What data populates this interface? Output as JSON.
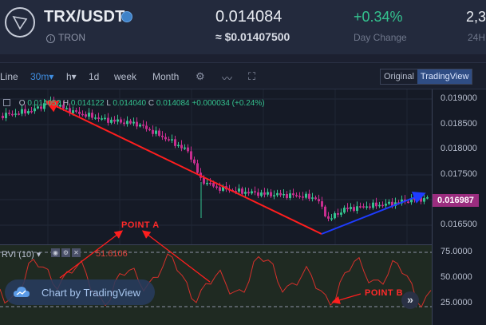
{
  "header": {
    "pair": "TRX/USDT",
    "coin": "TRON",
    "price": "0.014084",
    "usd_price": "≈ $0.01407500",
    "change": "+0.34%",
    "change_label": "Day Change",
    "high_value": "2,3",
    "high_label": "24H"
  },
  "toolbar": {
    "items": [
      {
        "label": "Line"
      },
      {
        "label": "30m▾"
      },
      {
        "label": "h▾"
      },
      {
        "label": "1d"
      },
      {
        "label": "week"
      },
      {
        "label": "Month"
      }
    ],
    "view_original": "Original",
    "view_tradingview": "TradingView"
  },
  "ohlc": {
    "o_label": "O",
    "o_value": "0.014052",
    "h_label": "H",
    "h_value": "0.014122",
    "l_label": "L",
    "l_value": "0.014040",
    "c_label": "C",
    "c_value": "0.014084",
    "change": "+0.000034 (+0.24%)"
  },
  "price_axis": [
    "0.019000",
    "0.018500",
    "0.018000",
    "0.017500",
    "0.017000",
    "0.016500"
  ],
  "current_price": "0.016987",
  "rvi": {
    "label": "RVI (10) ▾",
    "value": "51.6106",
    "axis": [
      "75.0000",
      "50.0000",
      "25.0000"
    ]
  },
  "annotations": {
    "point_a": "POINT A",
    "point_b": "POINT B"
  },
  "branding": {
    "chart_by": "Chart by TradingView"
  },
  "colors": {
    "up": "#34c38f",
    "down": "#c72e8f",
    "trend_down": "#ff1e1e",
    "trend_up": "#1e3cff",
    "accent": "#3f8de0"
  }
}
